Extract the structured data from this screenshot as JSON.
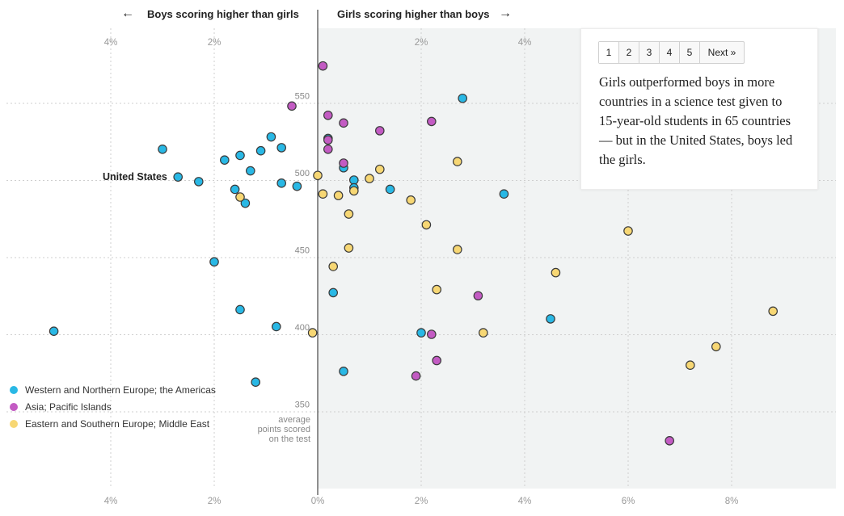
{
  "header": {
    "left_label": "Boys scoring higher than girls",
    "right_label": "Girls scoring higher than boys",
    "left_arrow": "←",
    "right_arrow": "→"
  },
  "pager": {
    "pages": [
      "1",
      "2",
      "3",
      "4",
      "5"
    ],
    "active_page": "1",
    "next_label": "Next »"
  },
  "panel": {
    "text": "Girls outperformed boys in more countries in a science test given to 15-year-old students in 65 countries — but in the United States, boys led the girls."
  },
  "highlight_label": "United States",
  "colors": {
    "western": "#29b8e5",
    "asia": "#c35bc3",
    "eastern": "#f7d774",
    "shade": "#f1f3f3",
    "grid": "#cfcfcf",
    "axis": "#222222"
  },
  "chart_data": {
    "type": "scatter",
    "title": "",
    "xlabel": "",
    "ylabel": "average points scored on the test",
    "xlim": [
      -6,
      10
    ],
    "ylim": [
      315,
      600
    ],
    "top_ticks": [
      {
        "value": -4,
        "label": "4%"
      },
      {
        "value": -2,
        "label": "2%"
      },
      {
        "value": 2,
        "label": "2%"
      },
      {
        "value": 4,
        "label": "4%"
      }
    ],
    "bottom_ticks": [
      {
        "value": -4,
        "label": "4%"
      },
      {
        "value": -2,
        "label": "2%"
      },
      {
        "value": 0,
        "label": "0%"
      },
      {
        "value": 2,
        "label": "2%"
      },
      {
        "value": 4,
        "label": "4%"
      },
      {
        "value": 6,
        "label": "6%"
      },
      {
        "value": 8,
        "label": "8%"
      }
    ],
    "y_ticks": [
      550,
      500,
      450,
      400,
      350
    ],
    "x_grid": [
      -4,
      -2,
      2,
      4,
      6,
      8
    ],
    "series": [
      {
        "name": "Western and Northern Europe; the Americas",
        "color_key": "western",
        "points": [
          [
            -5.1,
            402
          ],
          [
            -3.0,
            520
          ],
          [
            -2.7,
            502
          ],
          [
            -2.3,
            499
          ],
          [
            -1.8,
            513
          ],
          [
            -1.5,
            516
          ],
          [
            -1.3,
            506
          ],
          [
            -1.1,
            519
          ],
          [
            -0.9,
            528
          ],
          [
            -0.7,
            521
          ],
          [
            -0.7,
            498
          ],
          [
            -0.4,
            496
          ],
          [
            -1.6,
            494
          ],
          [
            -1.4,
            485
          ],
          [
            -2.0,
            447
          ],
          [
            -1.5,
            416
          ],
          [
            -0.8,
            405
          ],
          [
            -1.2,
            369
          ],
          [
            0.2,
            527
          ],
          [
            0.5,
            508
          ],
          [
            0.7,
            500
          ],
          [
            0.7,
            495
          ],
          [
            1.4,
            494
          ],
          [
            2.8,
            553
          ],
          [
            3.6,
            491
          ],
          [
            0.3,
            427
          ],
          [
            2.0,
            401
          ],
          [
            4.5,
            410
          ],
          [
            0.5,
            376
          ]
        ]
      },
      {
        "name": "Asia; Pacific Islands",
        "color_key": "asia",
        "points": [
          [
            0.1,
            574
          ],
          [
            -0.5,
            548
          ],
          [
            0.2,
            542
          ],
          [
            0.5,
            537
          ],
          [
            1.2,
            532
          ],
          [
            2.2,
            538
          ],
          [
            0.2,
            526
          ],
          [
            0.2,
            520
          ],
          [
            0.5,
            511
          ],
          [
            3.1,
            425
          ],
          [
            2.2,
            400
          ],
          [
            2.3,
            383
          ],
          [
            1.9,
            373
          ],
          [
            6.8,
            331
          ]
        ]
      },
      {
        "name": "Eastern and Southern Europe; Middle East",
        "color_key": "eastern",
        "points": [
          [
            0.0,
            503
          ],
          [
            1.2,
            507
          ],
          [
            2.7,
            512
          ],
          [
            1.0,
            501
          ],
          [
            0.7,
            493
          ],
          [
            0.4,
            490
          ],
          [
            0.1,
            491
          ],
          [
            -1.5,
            489
          ],
          [
            1.8,
            487
          ],
          [
            0.6,
            478
          ],
          [
            2.1,
            471
          ],
          [
            6.0,
            467
          ],
          [
            0.6,
            456
          ],
          [
            2.7,
            455
          ],
          [
            0.3,
            444
          ],
          [
            4.6,
            440
          ],
          [
            2.3,
            429
          ],
          [
            8.8,
            415
          ],
          [
            -0.1,
            401
          ],
          [
            3.2,
            401
          ],
          [
            7.7,
            392
          ],
          [
            7.2,
            380
          ]
        ]
      }
    ],
    "highlight": {
      "label": "United States",
      "x": -2.7,
      "y": 502
    },
    "legend": [
      "Western and Northern Europe; the Americas",
      "Asia; Pacific Islands",
      "Eastern and Southern Europe; Middle East"
    ],
    "legend_position": "bottom-left",
    "grid": true
  }
}
